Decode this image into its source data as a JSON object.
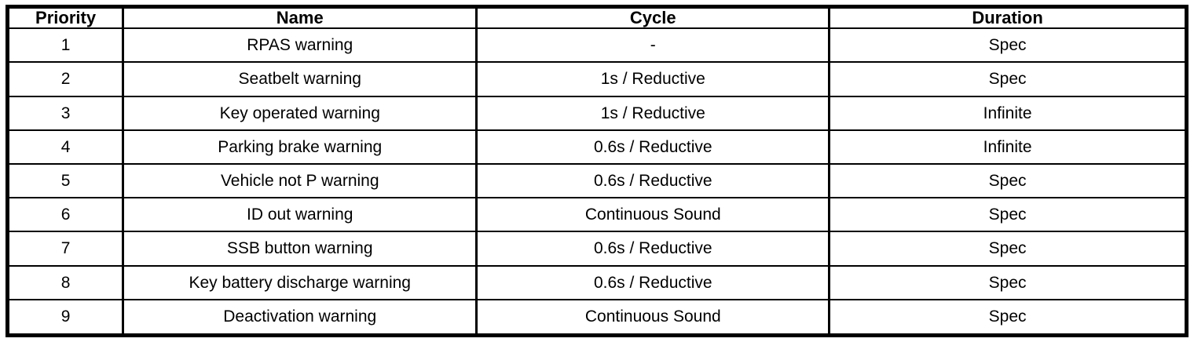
{
  "table": {
    "columns": [
      {
        "key": "priority",
        "label": "Priority"
      },
      {
        "key": "name",
        "label": "Name"
      },
      {
        "key": "cycle",
        "label": "Cycle"
      },
      {
        "key": "duration",
        "label": "Duration"
      }
    ],
    "rows": [
      {
        "priority": "1",
        "name": "RPAS warning",
        "cycle": "-",
        "duration": "Spec"
      },
      {
        "priority": "2",
        "name": "Seatbelt warning",
        "cycle": "1s / Reductive",
        "duration": "Spec"
      },
      {
        "priority": "3",
        "name": "Key operated warning",
        "cycle": "1s / Reductive",
        "duration": "Infinite"
      },
      {
        "priority": "4",
        "name": "Parking brake warning",
        "cycle": "0.6s / Reductive",
        "duration": "Infinite"
      },
      {
        "priority": "5",
        "name": "Vehicle not P warning",
        "cycle": "0.6s / Reductive",
        "duration": "Spec"
      },
      {
        "priority": "6",
        "name": "ID out warning",
        "cycle": "Continuous Sound",
        "duration": "Spec"
      },
      {
        "priority": "7",
        "name": "SSB button warning",
        "cycle": "0.6s / Reductive",
        "duration": "Spec"
      },
      {
        "priority": "8",
        "name": "Key battery discharge warning",
        "cycle": "0.6s / Reductive",
        "duration": "Spec"
      },
      {
        "priority": "9",
        "name": "Deactivation warning",
        "cycle": "Continuous Sound",
        "duration": "Spec"
      }
    ],
    "colors": {
      "border": "#000000",
      "text": "#000000",
      "background": "#ffffff"
    }
  }
}
